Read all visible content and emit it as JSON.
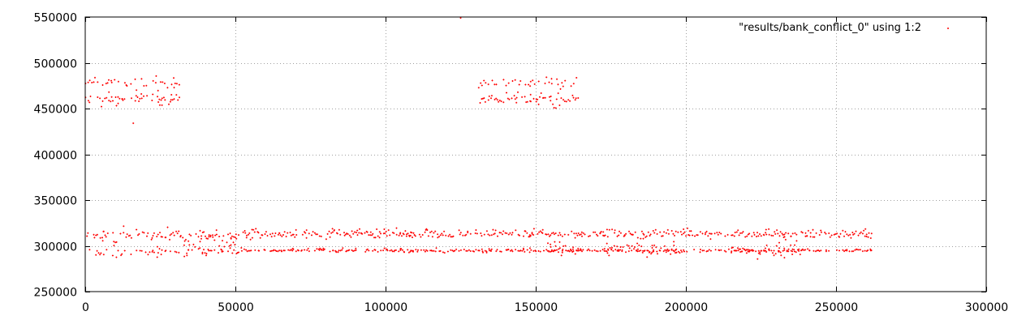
{
  "chart_data": {
    "type": "scatter",
    "title": "",
    "xlabel": "",
    "ylabel": "",
    "xlim": [
      0,
      300000
    ],
    "ylim": [
      250000,
      550000
    ],
    "x_ticks": [
      0,
      50000,
      100000,
      150000,
      200000,
      250000,
      300000
    ],
    "y_ticks": [
      250000,
      300000,
      350000,
      400000,
      450000,
      500000,
      550000
    ],
    "x_tick_labels": [
      "0",
      "50000",
      "100000",
      "150000",
      "200000",
      "250000",
      "300000"
    ],
    "y_tick_labels": [
      "250000",
      "300000",
      "350000",
      "400000",
      "450000",
      "500000",
      "550000"
    ],
    "grid": true,
    "legend_position": "top-right",
    "point_color": "#ff0000",
    "series": [
      {
        "name": "\"results/bank_conflict_0\" using 1:2",
        "x_range": [
          0,
          262000
        ],
        "regions": [
          {
            "x": [
              0,
              32000
            ],
            "levels": [
              {
                "y": 293000,
                "spread": 7000,
                "density": 0.35
              },
              {
                "y": 312000,
                "spread": 9000,
                "density": 0.55
              },
              {
                "y": 460000,
                "spread": 9000,
                "density": 0.6
              },
              {
                "y": 478000,
                "spread": 8000,
                "density": 0.4
              }
            ]
          },
          {
            "x": [
              32000,
              52000
            ],
            "levels": [
              {
                "y": 295000,
                "spread": 10000,
                "density": 0.7
              },
              {
                "y": 310000,
                "spread": 9000,
                "density": 0.6
              }
            ]
          },
          {
            "x": [
              52000,
              131000
            ],
            "levels": [
              {
                "y": 295000,
                "spread": 2500,
                "density": 0.6
              },
              {
                "y": 313000,
                "spread": 6000,
                "density": 0.75
              }
            ]
          },
          {
            "x": [
              131000,
              164000
            ],
            "levels": [
              {
                "y": 295000,
                "spread": 2500,
                "density": 0.6
              },
              {
                "y": 313000,
                "spread": 6000,
                "density": 0.75
              },
              {
                "y": 460000,
                "spread": 9000,
                "density": 0.6
              },
              {
                "y": 478000,
                "spread": 8000,
                "density": 0.4
              }
            ]
          },
          {
            "x": [
              154000,
              164000
            ],
            "levels": [
              {
                "y": 297000,
                "spread": 10000,
                "density": 0.6
              }
            ]
          },
          {
            "x": [
              164000,
              262000
            ],
            "levels": [
              {
                "y": 295000,
                "spread": 2500,
                "density": 0.55
              },
              {
                "y": 313000,
                "spread": 6000,
                "density": 0.7
              }
            ]
          },
          {
            "x": [
              173000,
              197000
            ],
            "levels": [
              {
                "y": 296000,
                "spread": 10000,
                "density": 0.6
              }
            ]
          },
          {
            "x": [
              215000,
              238000
            ],
            "levels": [
              {
                "y": 296000,
                "spread": 10000,
                "density": 0.6
              }
            ]
          }
        ],
        "outliers": [
          [
            125000,
            549000
          ],
          [
            16000,
            434000
          ]
        ]
      }
    ]
  }
}
